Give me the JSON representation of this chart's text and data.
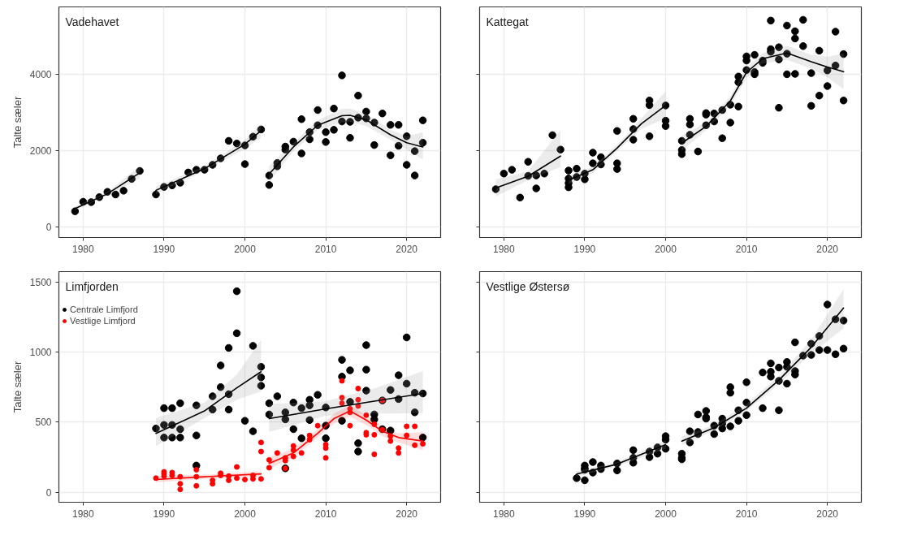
{
  "chart_data": [
    {
      "type": "scatter",
      "title": "Vadehavet",
      "ylabel": "Talte sæler",
      "xlim": [
        1977,
        2024.2
      ],
      "ylim": [
        -280,
        5780
      ],
      "xticks": [
        1980,
        1990,
        2000,
        2010,
        2020
      ],
      "yticks": [
        0,
        2000,
        4000
      ],
      "grid": true,
      "series": [
        {
          "marker": "circle",
          "color": "#000000",
          "x": [
            1979,
            1980,
            1981,
            1982,
            1983,
            1984,
            1985,
            1986,
            1987,
            1989,
            1990,
            1991,
            1992,
            1993,
            1994,
            1995,
            1996,
            1997,
            1998,
            1999,
            2000,
            2000,
            2001,
            2002,
            2003,
            2003,
            2004,
            2004,
            2005,
            2005,
            2006,
            2007,
            2007,
            2008,
            2008,
            2009,
            2009,
            2010,
            2010,
            2011,
            2011,
            2012,
            2012,
            2013,
            2013,
            2014,
            2014,
            2015,
            2015,
            2016,
            2016,
            2017,
            2018,
            2018,
            2019,
            2019,
            2020,
            2020,
            2021,
            2021,
            2022,
            2022
          ],
          "values": [
            410,
            660,
            650,
            780,
            920,
            850,
            950,
            1260,
            1470,
            850,
            1050,
            1090,
            1160,
            1430,
            1500,
            1500,
            1630,
            1800,
            2260,
            2190,
            2140,
            1650,
            2370,
            2560,
            1350,
            1100,
            1680,
            1590,
            2110,
            2030,
            2240,
            2830,
            1930,
            2490,
            2300,
            3070,
            2670,
            2490,
            2230,
            3110,
            2550,
            3980,
            2770,
            2760,
            2340,
            3450,
            2870,
            3030,
            2850,
            2740,
            2150,
            2980,
            2680,
            1880,
            2680,
            2130,
            2380,
            1630,
            1990,
            1350,
            2800,
            2210
          ]
        },
        {
          "type": "line",
          "color": "#000000",
          "x": [
            1979,
            1983,
            1987
          ],
          "values": [
            480,
            870,
            1420
          ],
          "lower": [
            430,
            820,
            1270
          ],
          "upper": [
            540,
            920,
            1600
          ]
        },
        {
          "type": "line",
          "color": "#000000",
          "x": [
            1989,
            1995,
            2000,
            2002
          ],
          "values": [
            960,
            1530,
            2170,
            2530
          ],
          "lower": [
            860,
            1470,
            2050,
            2350
          ],
          "upper": [
            1060,
            1590,
            2290,
            2700
          ]
        },
        {
          "type": "line",
          "color": "#000000",
          "x": [
            2003,
            2006,
            2009,
            2012,
            2013,
            2015,
            2018,
            2020,
            2022
          ],
          "values": [
            1390,
            2100,
            2670,
            2920,
            2930,
            2810,
            2420,
            2210,
            2100
          ],
          "lower": [
            1180,
            1990,
            2540,
            2740,
            2760,
            2650,
            2290,
            2030,
            1770
          ],
          "upper": [
            1600,
            2210,
            2800,
            3100,
            3110,
            2970,
            2550,
            2380,
            2490
          ]
        }
      ]
    },
    {
      "type": "scatter",
      "title": "Kattegat",
      "xlim": [
        1977,
        2024.2
      ],
      "ylim": [
        -280,
        5780
      ],
      "xticks": [
        1980,
        1990,
        2000,
        2010,
        2020
      ],
      "yticks": [
        0,
        2000,
        4000
      ],
      "tick_labels": "x",
      "grid": true,
      "series": [
        {
          "marker": "circle",
          "color": "#000000",
          "x": [
            1979,
            1980,
            1981,
            1982,
            1983,
            1983,
            1984,
            1984,
            1985,
            1986,
            1987,
            1988,
            1988,
            1988,
            1988,
            1989,
            1989,
            1990,
            1990,
            1991,
            1991,
            1992,
            1992,
            1994,
            1994,
            1994,
            1996,
            1996,
            1996,
            1998,
            1998,
            1998,
            2000,
            2000,
            2000,
            2002,
            2002,
            2002,
            2003,
            2003,
            2003,
            2004,
            2005,
            2005,
            2005,
            2006,
            2006,
            2007,
            2007,
            2008,
            2008,
            2009,
            2009,
            2009,
            2010,
            2010,
            2010,
            2011,
            2011,
            2011,
            2012,
            2012,
            2013,
            2013,
            2013,
            2014,
            2014,
            2014,
            2015,
            2015,
            2015,
            2016,
            2016,
            2016,
            2017,
            2017,
            2018,
            2018,
            2019,
            2019,
            2020,
            2020,
            2021,
            2021,
            2022,
            2022
          ],
          "values": [
            990,
            1400,
            1500,
            770,
            1710,
            1340,
            1350,
            1010,
            1400,
            2410,
            2030,
            1480,
            1270,
            1150,
            1040,
            1530,
            1310,
            1400,
            1250,
            1950,
            1670,
            1830,
            1640,
            2520,
            1670,
            1520,
            2840,
            2570,
            2290,
            3320,
            3200,
            2380,
            3190,
            2790,
            2650,
            2260,
            2020,
            1910,
            2840,
            2690,
            2420,
            1980,
            2990,
            2950,
            2670,
            2980,
            2770,
            3070,
            2330,
            3210,
            2740,
            3950,
            3800,
            3160,
            4480,
            4370,
            4120,
            4520,
            4070,
            4010,
            4370,
            4310,
            5420,
            4670,
            4600,
            4720,
            4400,
            3130,
            5290,
            4550,
            4010,
            5140,
            4950,
            4020,
            5440,
            4750,
            4040,
            3180,
            4630,
            3450,
            4110,
            3700,
            5130,
            4240,
            4540,
            3320
          ]
        },
        {
          "type": "line",
          "color": "#000000",
          "x": [
            1979,
            1983,
            1987
          ],
          "values": [
            1020,
            1330,
            1860
          ],
          "lower": [
            800,
            1230,
            1570
          ],
          "upper": [
            1250,
            1460,
            2550
          ]
        },
        {
          "type": "line",
          "color": "#000000",
          "x": [
            1988,
            1991,
            1994,
            1997,
            2000
          ],
          "values": [
            1230,
            1500,
            2070,
            2710,
            3190
          ],
          "lower": [
            1120,
            1420,
            1990,
            2580,
            2850
          ],
          "upper": [
            1340,
            1580,
            2150,
            2850,
            3560
          ]
        },
        {
          "type": "line",
          "color": "#000000",
          "x": [
            2002,
            2005,
            2008,
            2010,
            2012,
            2015,
            2018,
            2020,
            2022
          ],
          "values": [
            2200,
            2640,
            3310,
            4060,
            4420,
            4570,
            4340,
            4200,
            4080
          ],
          "lower": [
            2000,
            2540,
            3190,
            3920,
            4290,
            4390,
            4160,
            3930,
            3620
          ],
          "upper": [
            2400,
            2740,
            3430,
            4190,
            4560,
            4760,
            4520,
            4470,
            4560
          ]
        }
      ]
    },
    {
      "type": "scatter",
      "title": "Limfjorden",
      "ylabel": "Talte sæler",
      "xlim": [
        1977,
        2024.2
      ],
      "ylim": [
        -72,
        1575
      ],
      "xticks": [
        1980,
        1990,
        2000,
        2010,
        2020
      ],
      "yticks": [
        0,
        500,
        1000,
        1500
      ],
      "grid": true,
      "legend": "top left",
      "series": [
        {
          "marker": "circle",
          "name": "Centrale Limfjord",
          "color": "#000000",
          "x": [
            1989,
            1990,
            1990,
            1990,
            1991,
            1991,
            1991,
            1992,
            1992,
            1992,
            1994,
            1994,
            1994,
            1996,
            1996,
            1997,
            1997,
            1998,
            1998,
            1998,
            1999,
            1999,
            2000,
            2001,
            2001,
            2002,
            2002,
            2002,
            2003,
            2003,
            2004,
            2005,
            2005,
            2005,
            2006,
            2006,
            2007,
            2007,
            2008,
            2008,
            2008,
            2009,
            2010,
            2010,
            2010,
            2012,
            2012,
            2012,
            2013,
            2013,
            2014,
            2014,
            2015,
            2015,
            2015,
            2016,
            2016,
            2017,
            2017,
            2018,
            2018,
            2019,
            2019,
            2020,
            2020,
            2021,
            2021,
            2022,
            2022
          ],
          "values": [
            455,
            600,
            480,
            390,
            600,
            480,
            390,
            635,
            450,
            390,
            620,
            405,
            190,
            685,
            590,
            905,
            750,
            1030,
            700,
            590,
            1435,
            1135,
            510,
            1045,
            435,
            895,
            820,
            760,
            635,
            555,
            685,
            570,
            520,
            170,
            640,
            450,
            600,
            385,
            660,
            620,
            515,
            695,
            605,
            475,
            385,
            945,
            825,
            510,
            870,
            645,
            350,
            290,
            1050,
            875,
            725,
            555,
            520,
            655,
            450,
            730,
            440,
            835,
            665,
            1105,
            775,
            710,
            570,
            705,
            390
          ]
        },
        {
          "marker": "circle",
          "name": "Vestlige Limfjord",
          "color": "#ff0000",
          "x": [
            1989,
            1990,
            1990,
            1990,
            1991,
            1991,
            1992,
            1992,
            1992,
            1994,
            1994,
            1994,
            1996,
            1996,
            1997,
            1997,
            1998,
            1998,
            1999,
            1999,
            2000,
            2001,
            2001,
            2002,
            2002,
            2002,
            2003,
            2003,
            2004,
            2005,
            2005,
            2005,
            2006,
            2006,
            2006,
            2007,
            2008,
            2008,
            2009,
            2010,
            2010,
            2010,
            2012,
            2012,
            2012,
            2013,
            2013,
            2013,
            2014,
            2014,
            2014,
            2015,
            2015,
            2015,
            2016,
            2016,
            2016,
            2017,
            2017,
            2018,
            2018,
            2019,
            2019,
            2020,
            2020,
            2021,
            2021,
            2022
          ],
          "values": [
            100,
            145,
            130,
            115,
            140,
            120,
            110,
            60,
            20,
            160,
            110,
            45,
            85,
            60,
            135,
            120,
            115,
            85,
            180,
            100,
            90,
            120,
            95,
            355,
            290,
            95,
            230,
            175,
            280,
            245,
            225,
            170,
            330,
            300,
            255,
            280,
            405,
            375,
            475,
            340,
            315,
            245,
            795,
            675,
            635,
            595,
            570,
            475,
            740,
            660,
            615,
            550,
            425,
            410,
            485,
            410,
            270,
            655,
            445,
            400,
            365,
            315,
            280,
            470,
            405,
            470,
            335,
            345
          ]
        },
        {
          "type": "line",
          "color": "#000000",
          "x": [
            1989,
            1995,
            1999,
            2002
          ],
          "values": [
            420,
            580,
            745,
            860
          ],
          "lower": [
            330,
            530,
            660,
            720
          ],
          "upper": [
            530,
            640,
            840,
            1090
          ]
        },
        {
          "type": "line",
          "color": "#000000",
          "x": [
            2003,
            2010,
            2016,
            2022
          ],
          "values": [
            525,
            595,
            650,
            705
          ],
          "lower": [
            430,
            545,
            560,
            565
          ],
          "upper": [
            630,
            650,
            740,
            865
          ]
        },
        {
          "type": "line",
          "color": "#ff0000",
          "x": [
            1989,
            1995,
            2002
          ],
          "values": [
            90,
            110,
            130
          ],
          "lower": [
            70,
            95,
            110
          ],
          "upper": [
            115,
            125,
            150
          ]
        },
        {
          "type": "line",
          "color": "#ff0000",
          "x": [
            2003,
            2006,
            2009,
            2011,
            2013,
            2015,
            2017,
            2019,
            2022
          ],
          "values": [
            205,
            280,
            420,
            525,
            580,
            515,
            435,
            390,
            365
          ],
          "lower": [
            170,
            250,
            390,
            490,
            540,
            480,
            400,
            355,
            300
          ],
          "upper": [
            250,
            310,
            450,
            560,
            620,
            550,
            470,
            420,
            430
          ]
        }
      ]
    },
    {
      "type": "scatter",
      "title": "Vestlige Østersø",
      "xlim": [
        1977,
        2024.2
      ],
      "ylim": [
        -72,
        1575
      ],
      "xticks": [
        1980,
        1990,
        2000,
        2010,
        2020
      ],
      "yticks": [
        0,
        500,
        1000,
        1500
      ],
      "tick_labels": "x",
      "grid": true,
      "series": [
        {
          "marker": "circle",
          "color": "#000000",
          "x": [
            1989,
            1990,
            1990,
            1990,
            1990,
            1991,
            1991,
            1992,
            1992,
            1994,
            1994,
            1996,
            1996,
            1996,
            1998,
            1998,
            1999,
            1999,
            2000,
            2000,
            2000,
            2002,
            2002,
            2002,
            2003,
            2003,
            2004,
            2004,
            2004,
            2005,
            2005,
            2005,
            2006,
            2006,
            2007,
            2007,
            2007,
            2008,
            2008,
            2008,
            2009,
            2009,
            2010,
            2010,
            2010,
            2012,
            2012,
            2013,
            2013,
            2013,
            2014,
            2014,
            2014,
            2015,
            2015,
            2015,
            2016,
            2016,
            2016,
            2017,
            2018,
            2018,
            2019,
            2019,
            2020,
            2020,
            2021,
            2021,
            2022,
            2022
          ],
          "values": [
            100,
            190,
            170,
            160,
            85,
            215,
            140,
            190,
            165,
            205,
            155,
            300,
            245,
            210,
            290,
            250,
            320,
            275,
            400,
            375,
            310,
            275,
            245,
            235,
            435,
            355,
            555,
            430,
            415,
            580,
            535,
            525,
            475,
            415,
            525,
            490,
            455,
            750,
            710,
            470,
            585,
            510,
            785,
            640,
            550,
            855,
            600,
            920,
            860,
            825,
            890,
            795,
            585,
            930,
            895,
            775,
            1070,
            865,
            840,
            975,
            1060,
            980,
            1115,
            1015,
            1340,
            1015,
            1235,
            985,
            1225,
            1025
          ]
        },
        {
          "type": "line",
          "color": "#000000",
          "x": [
            1989,
            1994,
            2000
          ],
          "values": [
            130,
            200,
            340
          ],
          "lower": [
            110,
            185,
            310
          ],
          "upper": [
            150,
            215,
            370
          ]
        },
        {
          "type": "line",
          "color": "#000000",
          "x": [
            2002,
            2006,
            2010,
            2014,
            2018,
            2022
          ],
          "values": [
            365,
            460,
            600,
            800,
            1035,
            1315
          ],
          "lower": [
            335,
            440,
            580,
            770,
            990,
            1170
          ],
          "upper": [
            400,
            480,
            630,
            830,
            1090,
            1450
          ]
        }
      ]
    }
  ]
}
